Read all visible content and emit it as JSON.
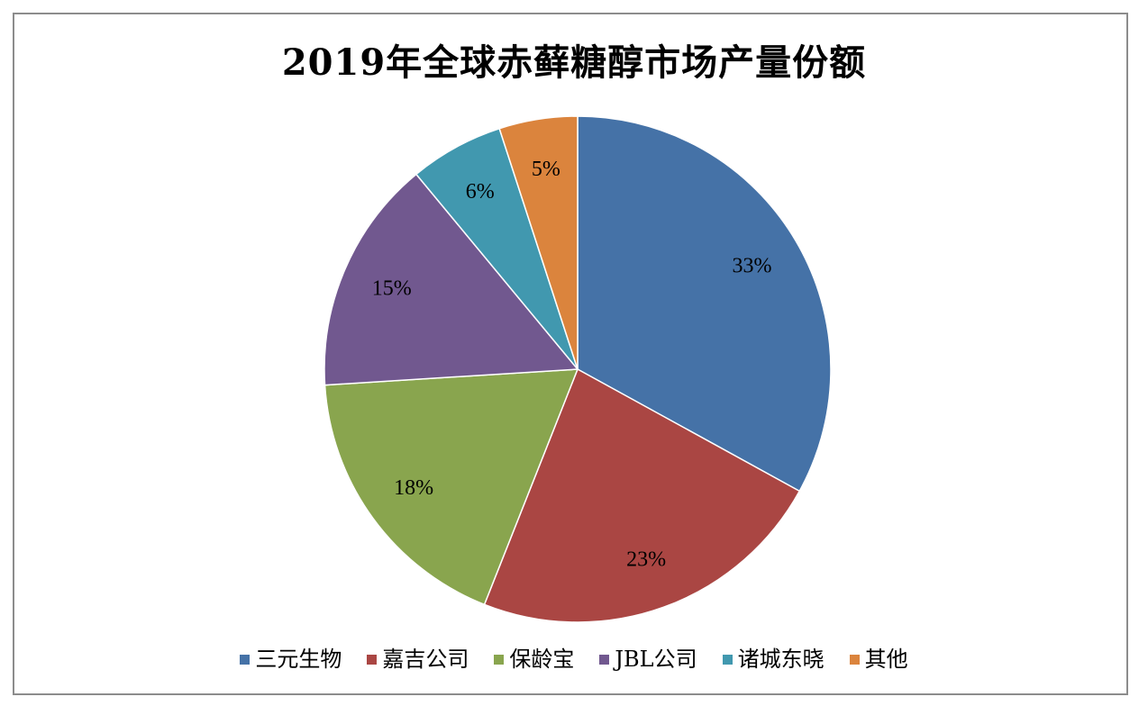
{
  "chart_data": {
    "type": "pie",
    "title": "2019年全球赤藓糖醇市场产量份额",
    "categories": [
      "三元生物",
      "嘉吉公司",
      "保龄宝",
      "JBL公司",
      "诸城东晓",
      "其他"
    ],
    "values": [
      33,
      23,
      18,
      15,
      6,
      5
    ],
    "value_labels": [
      "33%",
      "23%",
      "18%",
      "15%",
      "6%",
      "5%"
    ],
    "colors": [
      "#4572A7",
      "#AA4643",
      "#89A54E",
      "#71588F",
      "#4198AF",
      "#DB843D"
    ],
    "start_angle_deg": 0,
    "direction": "clockwise",
    "legend_position": "bottom"
  }
}
